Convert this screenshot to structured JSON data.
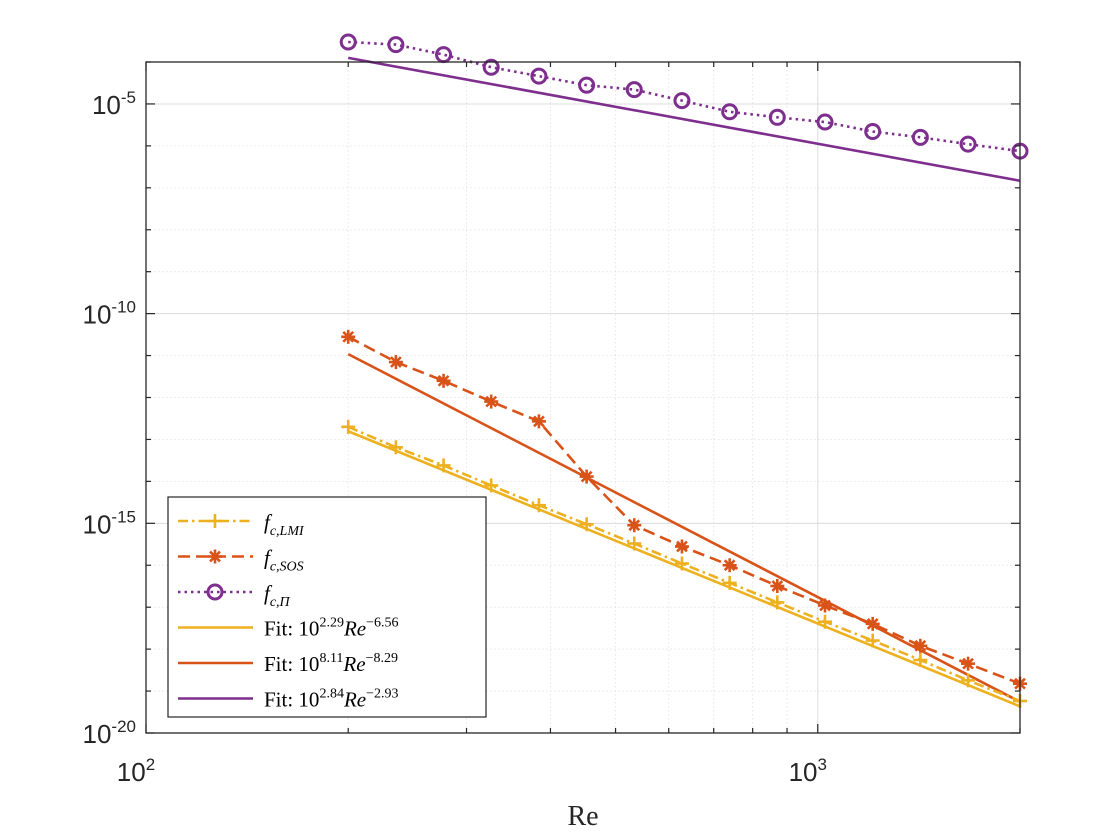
{
  "chart_data": {
    "type": "line",
    "xscale": "log",
    "yscale": "log",
    "xlabel": "Re",
    "ylabel": "",
    "title": "",
    "xlim": [
      100,
      2000
    ],
    "ylim": [
      1e-20,
      0.0001
    ],
    "grid": true,
    "legend_position": "bottom-left",
    "x_ticks": [
      {
        "base": "10",
        "exp": "2"
      },
      {
        "base": "10",
        "exp": "3"
      }
    ],
    "y_ticks": [
      {
        "base": "10",
        "exp": "-5"
      },
      {
        "base": "10",
        "exp": "-10"
      },
      {
        "base": "10",
        "exp": "-15"
      },
      {
        "base": "10",
        "exp": "-20"
      }
    ],
    "x": [
      200,
      235.5,
      277.3,
      326.5,
      384.5,
      452.8,
      533.1,
      627.8,
      739.3,
      870.5,
      1025.1,
      1207.1,
      1421.4,
      1673.8,
      2000
    ],
    "series": [
      {
        "name": "f_{c,LMI}",
        "color": "#EDB120",
        "line": "dashdot",
        "marker": "plus",
        "values": [
          2e-13,
          6.5e-14,
          2.4e-14,
          8e-15,
          2.7e-15,
          9.5e-16,
          3.3e-16,
          1.1e-16,
          3.8e-17,
          1.3e-17,
          4.5e-18,
          1.6e-18,
          5.5e-19,
          1.8e-19,
          5.8e-20
        ]
      },
      {
        "name": "f_{c,SOS}",
        "color": "#D95319",
        "line": "dashed",
        "marker": "asterisk",
        "values": [
          2.8e-11,
          7e-12,
          2.5e-12,
          8e-13,
          2.7e-13,
          1.3e-14,
          9e-16,
          2.8e-16,
          1e-16,
          3.2e-17,
          1.1e-17,
          4e-18,
          1.2e-18,
          4.5e-19,
          1.5e-19
        ]
      },
      {
        "name": "f_{c,Π}",
        "color": "#7E2F8E",
        "line": "dotted",
        "marker": "circle",
        "values": [
          0.0003,
          0.00026,
          0.00015,
          7.5e-05,
          4.6e-05,
          2.8e-05,
          2.2e-05,
          1.2e-05,
          6.5e-06,
          4.8e-06,
          3.7e-06,
          2.2e-06,
          1.6e-06,
          1.1e-06,
          7.5e-07
        ]
      }
    ],
    "fits": [
      {
        "name": "Fit: 10^{2.29} Re^{-6.56}",
        "coef_exp": 2.29,
        "power": -6.56,
        "color": "#EDB120"
      },
      {
        "name": "Fit: 10^{8.11} Re^{-8.29}",
        "coef_exp": 8.11,
        "power": -8.29,
        "color": "#D95319"
      },
      {
        "name": "Fit: 10^{2.84} Re^{-2.93}",
        "coef_exp": 2.84,
        "power": -2.93,
        "color": "#7E2F8E"
      }
    ],
    "legend": [
      {
        "kind": "data",
        "sub": "c,LMI",
        "color": "#EDB120",
        "line": "dashdot",
        "marker": "plus"
      },
      {
        "kind": "data",
        "sub": "c,SOS",
        "color": "#D95319",
        "line": "dashed",
        "marker": "asterisk"
      },
      {
        "kind": "data",
        "sub": "c,Π",
        "color": "#7E2F8E",
        "line": "dotted",
        "marker": "circle"
      },
      {
        "kind": "fit",
        "prefix": "Fit:",
        "coef": "2.29",
        "power": "−6.56",
        "color": "#EDB120"
      },
      {
        "kind": "fit",
        "prefix": "Fit:",
        "coef": "8.11",
        "power": "−8.29",
        "color": "#D95319"
      },
      {
        "kind": "fit",
        "prefix": "Fit:",
        "coef": "2.84",
        "power": "−2.93",
        "color": "#7E2F8E"
      }
    ]
  }
}
